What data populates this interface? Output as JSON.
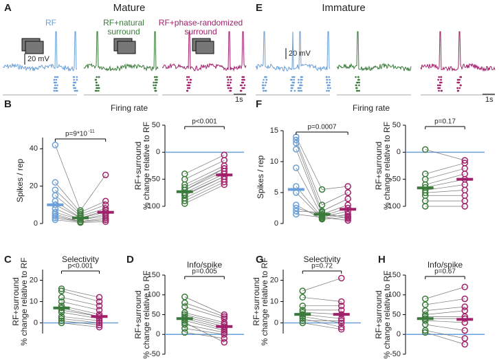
{
  "panel_labels": [
    "A",
    "B",
    "C",
    "D",
    "E",
    "F",
    "G",
    "H"
  ],
  "headers": [
    "Mature",
    "Immature"
  ],
  "conditions": [
    [
      "RF"
    ],
    [
      "RF+natural",
      "surround"
    ],
    [
      "RF+phase-randomized",
      "surround"
    ]
  ],
  "scale_bars": [
    "20 mV",
    "1s"
  ],
  "firing_rate": "Firing rate",
  "chart_data": [
    {
      "type": "paired",
      "ylabel": [
        "Spikes / rep"
      ],
      "annotation": "p=9*10",
      "annotation_sup": "-11",
      "ylim": [
        0,
        46
      ],
      "yticks": [
        0,
        20,
        40
      ],
      "series": [
        {
          "color": "#6a9fd8",
          "values": [
            42,
            22,
            18,
            15,
            12,
            10,
            8,
            6,
            5,
            4,
            3,
            2
          ],
          "mean": 10
        },
        {
          "color": "#3a7a3a",
          "values": [
            7,
            6,
            5,
            4,
            3,
            3,
            2,
            2,
            1,
            1,
            1,
            0.5
          ],
          "mean": 3
        },
        {
          "color": "#a0206a",
          "values": [
            26,
            12,
            10,
            8,
            7,
            6,
            5,
            4,
            3,
            2,
            2,
            1
          ],
          "mean": 6
        }
      ]
    },
    {
      "type": "paired",
      "ylabel": [
        "RF+surround",
        "% change relative to RF"
      ],
      "annotation": "p<0.001",
      "ylim": [
        -100,
        50
      ],
      "yticks": [
        -100,
        -50,
        0,
        50
      ],
      "reference": 0,
      "reference_color": "#6a9fd8",
      "series": [
        {
          "color": "#3a7a3a",
          "values": [
            -40,
            -50,
            -60,
            -65,
            -70,
            -75,
            -80,
            -85,
            -90,
            -95,
            -70,
            -78
          ],
          "mean": -73
        },
        {
          "color": "#a0206a",
          "values": [
            -5,
            -15,
            -25,
            -30,
            -35,
            -40,
            -45,
            -50,
            -55,
            -60,
            -30,
            -45
          ],
          "mean": -42
        }
      ]
    },
    {
      "type": "paired",
      "title": "Selectivity",
      "ylabel": [
        "RF+surround",
        "% change relative to RF"
      ],
      "annotation": "p<0.001",
      "ylim": [
        -5,
        25
      ],
      "yticks": [
        0,
        10,
        20
      ],
      "reference": 0,
      "reference_color": "#6a9fd8",
      "series": [
        {
          "color": "#3a7a3a",
          "values": [
            16,
            15,
            12,
            10,
            8,
            6,
            5,
            3,
            2,
            1,
            0,
            7
          ],
          "mean": 7
        },
        {
          "color": "#a0206a",
          "values": [
            12,
            10,
            8,
            6,
            4,
            3,
            2,
            1,
            0,
            -1,
            -2,
            3
          ],
          "mean": 3
        }
      ]
    },
    {
      "type": "paired",
      "title": "Info/spike",
      "ylabel": [
        "RF+surround",
        "% change relative to RF"
      ],
      "annotation": "p=0.005",
      "ylim": [
        -50,
        150
      ],
      "yticks": [
        -50,
        0,
        50,
        100,
        150
      ],
      "reference": 0,
      "reference_color": "#6a9fd8",
      "series": [
        {
          "color": "#3a7a3a",
          "values": [
            95,
            80,
            70,
            55,
            45,
            40,
            35,
            25,
            15,
            5,
            30,
            50
          ],
          "mean": 40
        },
        {
          "color": "#a0206a",
          "values": [
            50,
            45,
            40,
            30,
            20,
            15,
            10,
            5,
            0,
            -10,
            -20,
            25
          ],
          "mean": 20
        }
      ]
    },
    {
      "type": "paired",
      "ylabel": [
        "Spikes / rep"
      ],
      "annotation": "p=0.0007",
      "ylim": [
        0,
        15
      ],
      "yticks": [
        0,
        5,
        10,
        15
      ],
      "series": [
        {
          "color": "#6a9fd8",
          "values": [
            14,
            13.5,
            13,
            12,
            9,
            6,
            5,
            3,
            2,
            1.5,
            2.5
          ],
          "mean": 5.5
        },
        {
          "color": "#3a7a3a",
          "values": [
            5.5,
            3,
            2,
            1.5,
            1.2,
            1,
            0.8,
            0.7,
            1.8,
            1,
            1.3
          ],
          "mean": 1.5
        },
        {
          "color": "#a0206a",
          "values": [
            6,
            5,
            4,
            3,
            2.5,
            2,
            1.5,
            1,
            0.8,
            0.5,
            1.2
          ],
          "mean": 2.3
        }
      ]
    },
    {
      "type": "paired",
      "ylabel": [
        "RF+surround",
        "% change relative to RF"
      ],
      "annotation": "p=0.17",
      "ylim": [
        -100,
        50
      ],
      "yticks": [
        -100,
        -50,
        0,
        50
      ],
      "reference": 0,
      "reference_color": "#6a9fd8",
      "series": [
        {
          "color": "#3a7a3a",
          "values": [
            5,
            -40,
            -50,
            -60,
            -65,
            -70,
            -75,
            -80,
            -90,
            -100
          ],
          "mean": -66
        },
        {
          "color": "#a0206a",
          "values": [
            -15,
            -20,
            -30,
            -40,
            -50,
            -60,
            -70,
            -80,
            -90,
            -100
          ],
          "mean": -50
        }
      ]
    },
    {
      "type": "paired",
      "title": "Selectivity",
      "ylabel": [
        "RF+surround",
        "% change relative to RF"
      ],
      "annotation": "p=0.72",
      "ylim": [
        -5,
        25
      ],
      "yticks": [
        0,
        10,
        20
      ],
      "reference": 0,
      "reference_color": "#6a9fd8",
      "series": [
        {
          "color": "#3a7a3a",
          "values": [
            15,
            12,
            8,
            6,
            5,
            4,
            3,
            2,
            0,
            1
          ],
          "mean": 4
        },
        {
          "color": "#a0206a",
          "values": [
            21,
            10,
            8,
            6,
            4,
            2,
            0,
            -2,
            -3,
            1
          ],
          "mean": 4
        }
      ]
    },
    {
      "type": "paired",
      "title": "Info/spike",
      "ylabel": [
        "RF+surround",
        "% change relative to RF"
      ],
      "annotation": "p=0.67",
      "ylim": [
        -50,
        150
      ],
      "yticks": [
        -50,
        0,
        50,
        100,
        150
      ],
      "reference": 0,
      "reference_color": "#6a9fd8",
      "series": [
        {
          "color": "#3a7a3a",
          "values": [
            90,
            75,
            60,
            50,
            40,
            35,
            25,
            10,
            5,
            45
          ],
          "mean": 40
        },
        {
          "color": "#a0206a",
          "values": [
            120,
            90,
            70,
            60,
            40,
            30,
            10,
            -10,
            -25,
            45
          ],
          "mean": 38
        }
      ]
    }
  ]
}
